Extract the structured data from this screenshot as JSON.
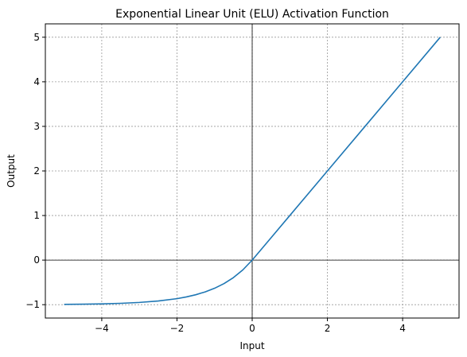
{
  "chart_data": {
    "type": "line",
    "title": "Exponential Linear Unit (ELU) Activation Function",
    "xlabel": "Input",
    "ylabel": "Output",
    "xlim": [
      -5.5,
      5.5
    ],
    "ylim": [
      -1.3,
      5.3
    ],
    "xticks": [
      -4,
      -2,
      0,
      2,
      4
    ],
    "xtick_labels": [
      "−4",
      "−2",
      "0",
      "2",
      "4"
    ],
    "yticks": [
      -1,
      0,
      1,
      2,
      3,
      4,
      5
    ],
    "ytick_labels": [
      "−1",
      "0",
      "1",
      "2",
      "3",
      "4",
      "5"
    ],
    "grid": true,
    "reference_lines": {
      "horizontal_at": 0,
      "vertical_at": 0
    },
    "series": [
      {
        "color": "#1f77b4",
        "x": [
          -5,
          -4.5,
          -4,
          -3.5,
          -3,
          -2.5,
          -2,
          -1.75,
          -1.5,
          -1.25,
          -1,
          -0.75,
          -0.5,
          -0.25,
          0,
          0.5,
          1,
          2,
          3,
          4,
          5
        ],
        "y": [
          -0.993,
          -0.989,
          -0.982,
          -0.97,
          -0.95,
          -0.918,
          -0.865,
          -0.826,
          -0.777,
          -0.713,
          -0.632,
          -0.528,
          -0.393,
          -0.221,
          0,
          0.5,
          1,
          2,
          3,
          4,
          5
        ]
      }
    ]
  }
}
